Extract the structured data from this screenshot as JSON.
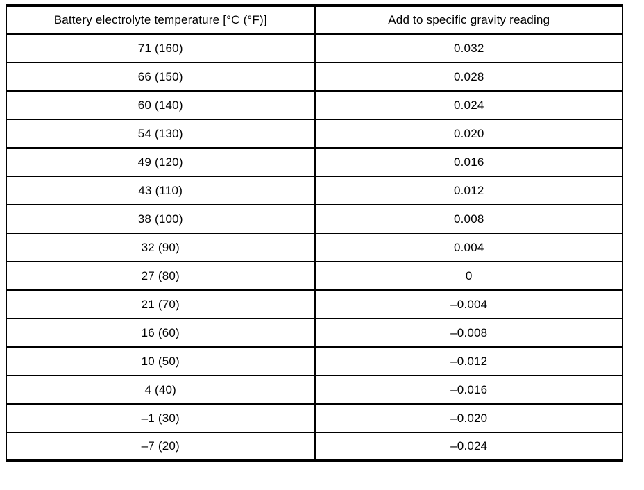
{
  "table": {
    "headers": [
      "Battery electrolyte temperature [°C (°F)]",
      "Add to specific gravity reading"
    ],
    "rows": [
      [
        "71 (160)",
        "0.032"
      ],
      [
        "66 (150)",
        "0.028"
      ],
      [
        "60 (140)",
        "0.024"
      ],
      [
        "54 (130)",
        "0.020"
      ],
      [
        "49 (120)",
        "0.016"
      ],
      [
        "43 (110)",
        "0.012"
      ],
      [
        "38 (100)",
        "0.008"
      ],
      [
        "32 (90)",
        "0.004"
      ],
      [
        "27 (80)",
        "0"
      ],
      [
        "21 (70)",
        "–0.004"
      ],
      [
        "16 (60)",
        "–0.008"
      ],
      [
        "10 (50)",
        "–0.012"
      ],
      [
        "4 (40)",
        "–0.016"
      ],
      [
        "–1 (30)",
        "–0.020"
      ],
      [
        "–7 (20)",
        "–0.024"
      ]
    ]
  }
}
